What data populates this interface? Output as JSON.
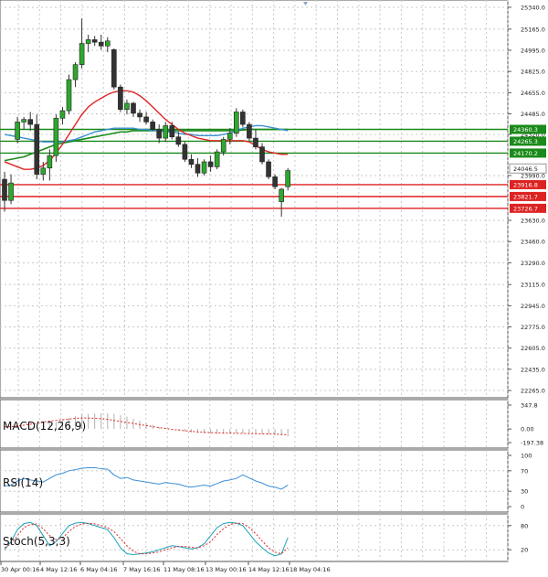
{
  "chart_data": {
    "type": "candlestick",
    "main": {
      "yticks": [
        "25340.0",
        "25165.0",
        "24995.0",
        "24825.0",
        "24655.0",
        "24485.0",
        "24320.0",
        "23990.0",
        "23630.0",
        "23460.0",
        "23290.0",
        "23115.0",
        "22945.0",
        "22775.0",
        "22605.0",
        "22435.0",
        "22265.0"
      ],
      "ylim": [
        22265,
        25340
      ],
      "candles": [
        {
          "o": 23960,
          "h": 24020,
          "l": 23700,
          "c": 23790
        },
        {
          "o": 23790,
          "h": 24000,
          "l": 23760,
          "c": 23930
        },
        {
          "o": 24280,
          "h": 24460,
          "l": 24250,
          "c": 24420
        },
        {
          "o": 24420,
          "h": 24460,
          "l": 24360,
          "c": 24440
        },
        {
          "o": 24440,
          "h": 24500,
          "l": 24350,
          "c": 24400
        },
        {
          "o": 24400,
          "h": 24480,
          "l": 23960,
          "c": 24000
        },
        {
          "o": 24000,
          "h": 24100,
          "l": 23950,
          "c": 24050
        },
        {
          "o": 24050,
          "h": 24200,
          "l": 23950,
          "c": 24150
        },
        {
          "o": 24150,
          "h": 24480,
          "l": 24100,
          "c": 24450
        },
        {
          "o": 24450,
          "h": 24540,
          "l": 24400,
          "c": 24510
        },
        {
          "o": 24510,
          "h": 24800,
          "l": 24480,
          "c": 24760
        },
        {
          "o": 24760,
          "h": 24900,
          "l": 24700,
          "c": 24880
        },
        {
          "o": 24880,
          "h": 25250,
          "l": 24850,
          "c": 25050
        },
        {
          "o": 25050,
          "h": 25120,
          "l": 24980,
          "c": 25080
        },
        {
          "o": 25080,
          "h": 25110,
          "l": 25030,
          "c": 25060
        },
        {
          "o": 25060,
          "h": 25120,
          "l": 25000,
          "c": 25030
        },
        {
          "o": 25030,
          "h": 25100,
          "l": 24980,
          "c": 25070
        },
        {
          "o": 25000,
          "h": 25010,
          "l": 24680,
          "c": 24700
        },
        {
          "o": 24700,
          "h": 24720,
          "l": 24500,
          "c": 24520
        },
        {
          "o": 24520,
          "h": 24600,
          "l": 24480,
          "c": 24570
        },
        {
          "o": 24570,
          "h": 24580,
          "l": 24460,
          "c": 24490
        },
        {
          "o": 24490,
          "h": 24520,
          "l": 24420,
          "c": 24460
        },
        {
          "o": 24460,
          "h": 24500,
          "l": 24400,
          "c": 24420
        },
        {
          "o": 24420,
          "h": 24440,
          "l": 24350,
          "c": 24360
        },
        {
          "o": 24360,
          "h": 24400,
          "l": 24250,
          "c": 24290
        },
        {
          "o": 24290,
          "h": 24420,
          "l": 24260,
          "c": 24390
        },
        {
          "o": 24390,
          "h": 24420,
          "l": 24280,
          "c": 24300
        },
        {
          "o": 24300,
          "h": 24340,
          "l": 24220,
          "c": 24240
        },
        {
          "o": 24240,
          "h": 24260,
          "l": 24100,
          "c": 24120
        },
        {
          "o": 24120,
          "h": 24160,
          "l": 24050,
          "c": 24080
        },
        {
          "o": 24080,
          "h": 24130,
          "l": 23980,
          "c": 24010
        },
        {
          "o": 24010,
          "h": 24120,
          "l": 23990,
          "c": 24100
        },
        {
          "o": 24100,
          "h": 24150,
          "l": 24020,
          "c": 24060
        },
        {
          "o": 24060,
          "h": 24200,
          "l": 24040,
          "c": 24180
        },
        {
          "o": 24180,
          "h": 24300,
          "l": 24150,
          "c": 24280
        },
        {
          "o": 24280,
          "h": 24370,
          "l": 24240,
          "c": 24330
        },
        {
          "o": 24330,
          "h": 24530,
          "l": 24300,
          "c": 24500
        },
        {
          "o": 24500,
          "h": 24520,
          "l": 24380,
          "c": 24400
        },
        {
          "o": 24400,
          "h": 24420,
          "l": 24270,
          "c": 24290
        },
        {
          "o": 24290,
          "h": 24360,
          "l": 24200,
          "c": 24220
        },
        {
          "o": 24220,
          "h": 24250,
          "l": 24080,
          "c": 24100
        },
        {
          "o": 24100,
          "h": 24120,
          "l": 23960,
          "c": 23980
        },
        {
          "o": 23980,
          "h": 24000,
          "l": 23880,
          "c": 23900
        },
        {
          "o": 23780,
          "h": 23890,
          "l": 23660,
          "c": 23880
        },
        {
          "o": 23900,
          "h": 24050,
          "l": 23870,
          "c": 24030
        }
      ],
      "ma_red": [
        24100,
        24080,
        24060,
        24040,
        24040,
        24050,
        24070,
        24110,
        24170,
        24240,
        24320,
        24400,
        24480,
        24540,
        24580,
        24610,
        24640,
        24660,
        24670,
        24670,
        24660,
        24630,
        24590,
        24540,
        24490,
        24440,
        24400,
        24360,
        24330,
        24310,
        24290,
        24280,
        24270,
        24270,
        24270,
        24270,
        24270,
        24270,
        24260,
        24230,
        24200,
        24180,
        24170,
        24160,
        24160
      ],
      "ma_blue": [
        24320,
        24310,
        24300,
        24290,
        24280,
        24270,
        24260,
        24260,
        24260,
        24260,
        24270,
        24280,
        24300,
        24320,
        24340,
        24350,
        24360,
        24370,
        24370,
        24370,
        24370,
        24360,
        24360,
        24350,
        24350,
        24340,
        24340,
        24330,
        24320,
        24320,
        24310,
        24310,
        24310,
        24310,
        24320,
        24330,
        24350,
        24370,
        24380,
        24390,
        24390,
        24380,
        24370,
        24360,
        24350
      ],
      "ma_green": [
        24110,
        24120,
        24130,
        24140,
        24160,
        24180,
        24200,
        24220,
        24240,
        24250,
        24260,
        24270,
        24280,
        24290,
        24300,
        24310,
        24320,
        24330,
        24340,
        24340,
        24350,
        24350,
        24350,
        24350,
        24350,
        24350,
        24350,
        24350,
        24350,
        24350,
        24350,
        24350,
        24350,
        24350,
        24350,
        24350,
        24350,
        24355,
        24360,
        24360,
        24360,
        24360,
        24360,
        24360,
        24360
      ],
      "hlines": [
        {
          "value": 24360.3,
          "label": "24360.3",
          "color": "#1a8a1a"
        },
        {
          "value": 24265.3,
          "label": "24265.3",
          "color": "#1a8a1a"
        },
        {
          "value": 24170.2,
          "label": "24170.2",
          "color": "#1a8a1a"
        },
        {
          "value": 23916.8,
          "label": "23916.8",
          "color": "#dd2222"
        },
        {
          "value": 23821.7,
          "label": "23821.7",
          "color": "#dd2222"
        },
        {
          "value": 23726.7,
          "label": "23726.7",
          "color": "#dd2222"
        }
      ],
      "current": {
        "value": 24046.5,
        "label": "24046.5"
      }
    },
    "macd": {
      "label": "MACD(12,26,9)",
      "yticks": [
        "347.8",
        "0.00",
        "-197.38"
      ],
      "ylim": [
        -197.38,
        347.8
      ],
      "hist": [
        0,
        5,
        10,
        15,
        25,
        40,
        60,
        80,
        100,
        130,
        160,
        190,
        210,
        220,
        225,
        230,
        228,
        220,
        200,
        180,
        150,
        120,
        90,
        60,
        30,
        10,
        -5,
        -20,
        -35,
        -50,
        -60,
        -65,
        -70,
        -72,
        -70,
        -68,
        -66,
        -64,
        -66,
        -70,
        -75,
        -80,
        -85,
        -95,
        -110
      ],
      "signal": [
        30,
        35,
        45,
        55,
        70,
        85,
        100,
        115,
        125,
        135,
        145,
        155,
        160,
        160,
        155,
        150,
        140,
        125,
        110,
        95,
        80,
        65,
        50,
        35,
        20,
        8,
        -5,
        -15,
        -25,
        -35,
        -42,
        -48,
        -52,
        -55,
        -58,
        -60,
        -62,
        -64,
        -66,
        -68,
        -70,
        -72,
        -75,
        -80,
        -88
      ]
    },
    "rsi": {
      "label": "RSI(14)",
      "yticks": [
        "100",
        "70",
        "30",
        "0"
      ],
      "ylim": [
        0,
        100
      ],
      "values": [
        40,
        42,
        50,
        55,
        52,
        50,
        48,
        55,
        62,
        65,
        70,
        72,
        75,
        76,
        76,
        74,
        73,
        62,
        55,
        57,
        52,
        50,
        48,
        46,
        44,
        47,
        45,
        44,
        40,
        38,
        40,
        42,
        40,
        45,
        50,
        52,
        55,
        62,
        56,
        50,
        46,
        40,
        38,
        34,
        42
      ]
    },
    "stoch": {
      "label": "Stoch(5,3,3)",
      "yticks": [
        "80",
        "20"
      ],
      "ylim": [
        0,
        100
      ],
      "k": [
        20,
        40,
        70,
        85,
        88,
        80,
        55,
        30,
        40,
        60,
        80,
        86,
        88,
        85,
        80,
        75,
        70,
        50,
        25,
        10,
        8,
        10,
        12,
        15,
        20,
        25,
        30,
        28,
        25,
        22,
        25,
        35,
        55,
        75,
        85,
        88,
        86,
        80,
        60,
        40,
        25,
        12,
        5,
        10,
        50
      ],
      "d": [
        25,
        35,
        55,
        75,
        83,
        84,
        72,
        55,
        45,
        50,
        65,
        78,
        84,
        86,
        84,
        80,
        75,
        65,
        48,
        30,
        16,
        10,
        10,
        12,
        15,
        20,
        25,
        28,
        28,
        26,
        25,
        30,
        40,
        58,
        72,
        83,
        86,
        85,
        75,
        60,
        42,
        25,
        14,
        10,
        25
      ]
    },
    "xticks": [
      "30 Apr 00:16",
      "4 May 12:16",
      "6 May 04:16",
      "7 May 16:16",
      "11 May 08:16",
      "13 May 00:16",
      "14 May 12:16",
      "18 May 04:16"
    ]
  }
}
